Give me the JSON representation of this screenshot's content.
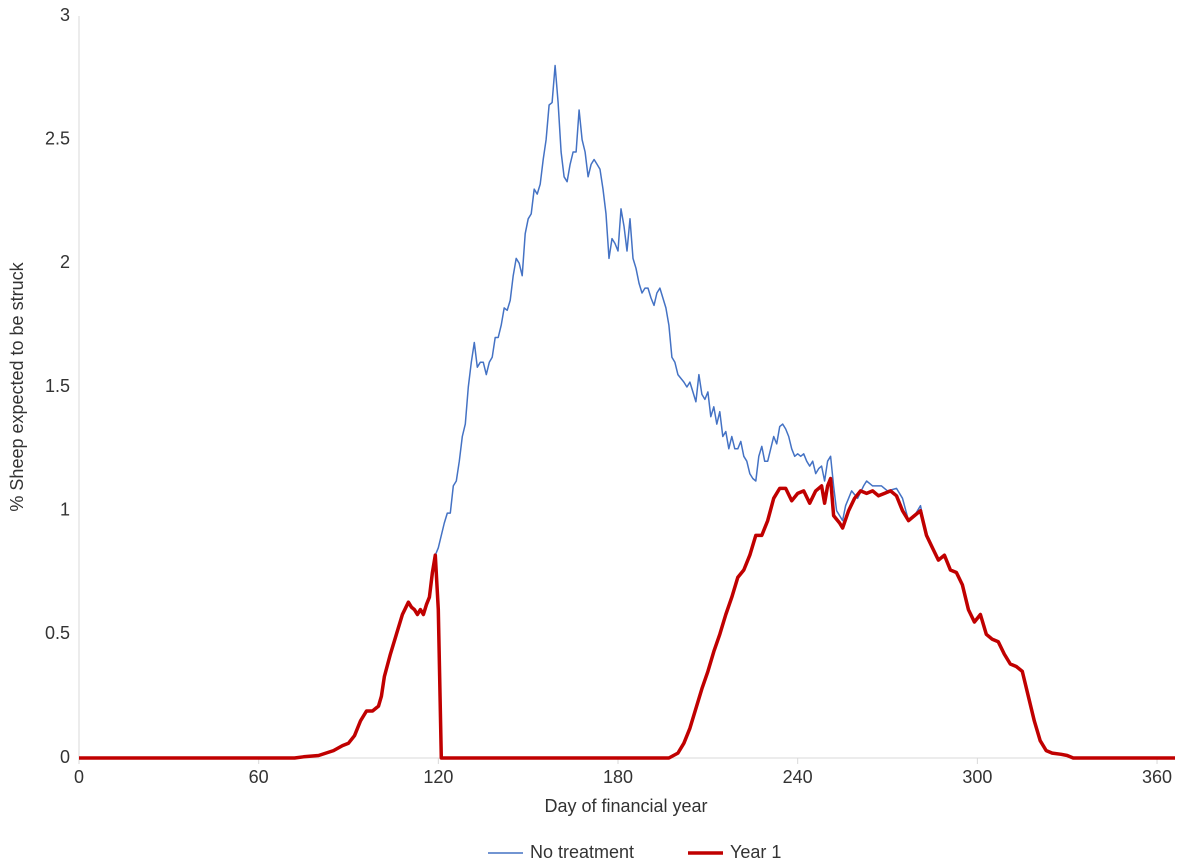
{
  "chart_data": {
    "type": "line",
    "xlabel": "Day of financial year",
    "ylabel": "% Sheep expected to be struck",
    "xlim": [
      0,
      366
    ],
    "xticks": [
      0,
      60,
      120,
      180,
      240,
      300,
      360
    ],
    "ylim": [
      0,
      3
    ],
    "yticks": [
      0,
      0.5,
      1,
      1.5,
      2,
      2.5,
      3
    ],
    "grid": false,
    "legend": "bottom",
    "series": [
      {
        "name": "No treatment",
        "color": "#4472c4",
        "width": 1.5,
        "x": [
          0,
          70,
          72,
          75,
          80,
          85,
          88,
          90,
          92,
          94,
          96,
          98,
          100,
          101,
          102,
          104,
          106,
          108,
          110,
          111,
          112,
          113,
          114,
          115,
          116,
          117,
          118,
          119,
          120,
          122,
          123,
          124,
          125,
          126,
          127,
          128,
          129,
          130,
          131,
          132,
          133,
          134,
          135,
          136,
          137,
          138,
          139,
          140,
          141,
          142,
          143,
          144,
          145,
          146,
          147,
          148,
          149,
          150,
          151,
          152,
          153,
          154,
          155,
          156,
          157,
          158,
          159,
          160,
          161,
          162,
          163,
          164,
          165,
          166,
          167,
          168,
          169,
          170,
          171,
          172,
          173,
          174,
          175,
          176,
          177,
          178,
          179,
          180,
          181,
          182,
          183,
          184,
          185,
          186,
          187,
          188,
          189,
          190,
          191,
          192,
          193,
          194,
          195,
          196,
          197,
          198,
          199,
          200,
          202,
          203,
          204,
          205,
          206,
          207,
          208,
          209,
          210,
          211,
          212,
          213,
          214,
          215,
          216,
          217,
          218,
          219,
          220,
          221,
          222,
          223,
          224,
          225,
          226,
          227,
          228,
          229,
          230,
          231,
          232,
          233,
          234,
          235,
          236,
          237,
          238,
          239,
          240,
          241,
          242,
          243,
          244,
          245,
          246,
          247,
          248,
          249,
          250,
          251,
          252,
          253,
          254,
          255,
          256,
          257,
          258,
          260,
          262,
          263,
          265,
          268,
          270,
          273,
          275,
          277,
          279,
          281,
          283,
          285,
          287,
          289,
          291,
          293,
          295,
          297,
          299,
          301,
          303,
          305,
          307,
          309,
          311,
          313,
          315,
          317,
          319,
          321,
          323,
          325,
          328,
          330,
          332,
          366
        ],
        "values": [
          0,
          0,
          0,
          0.005,
          0.01,
          0.03,
          0.05,
          0.06,
          0.09,
          0.15,
          0.19,
          0.19,
          0.21,
          0.25,
          0.33,
          0.42,
          0.5,
          0.58,
          0.63,
          0.61,
          0.6,
          0.58,
          0.6,
          0.58,
          0.62,
          0.65,
          0.75,
          0.82,
          0.85,
          0.95,
          0.99,
          0.99,
          1.1,
          1.12,
          1.2,
          1.3,
          1.35,
          1.5,
          1.6,
          1.68,
          1.58,
          1.6,
          1.6,
          1.55,
          1.6,
          1.62,
          1.7,
          1.7,
          1.75,
          1.82,
          1.81,
          1.85,
          1.95,
          2.02,
          2.0,
          1.95,
          2.12,
          2.18,
          2.2,
          2.3,
          2.28,
          2.32,
          2.42,
          2.5,
          2.64,
          2.65,
          2.8,
          2.65,
          2.45,
          2.35,
          2.33,
          2.4,
          2.45,
          2.45,
          2.62,
          2.5,
          2.45,
          2.35,
          2.4,
          2.42,
          2.4,
          2.38,
          2.3,
          2.2,
          2.02,
          2.1,
          2.08,
          2.05,
          2.22,
          2.15,
          2.05,
          2.18,
          2.02,
          1.98,
          1.92,
          1.88,
          1.9,
          1.9,
          1.86,
          1.83,
          1.88,
          1.9,
          1.86,
          1.82,
          1.75,
          1.62,
          1.6,
          1.55,
          1.52,
          1.5,
          1.52,
          1.48,
          1.44,
          1.55,
          1.47,
          1.45,
          1.48,
          1.38,
          1.42,
          1.35,
          1.4,
          1.3,
          1.32,
          1.25,
          1.3,
          1.25,
          1.25,
          1.28,
          1.22,
          1.2,
          1.15,
          1.13,
          1.12,
          1.22,
          1.26,
          1.2,
          1.2,
          1.25,
          1.3,
          1.27,
          1.34,
          1.35,
          1.33,
          1.3,
          1.25,
          1.22,
          1.23,
          1.22,
          1.23,
          1.2,
          1.18,
          1.2,
          1.15,
          1.17,
          1.18,
          1.12,
          1.2,
          1.22,
          1.1,
          1.0,
          0.98,
          0.96,
          1.02,
          1.05,
          1.08,
          1.05,
          1.1,
          1.12,
          1.1,
          1.1,
          1.08,
          1.09,
          1.05,
          0.96,
          0.98,
          1.02,
          0.9,
          0.85,
          0.8,
          0.82,
          0.76,
          0.75,
          0.7,
          0.6,
          0.55,
          0.58,
          0.5,
          0.48,
          0.47,
          0.42,
          0.38,
          0.37,
          0.35,
          0.25,
          0.15,
          0.07,
          0.03,
          0.02,
          0.015,
          0.01,
          0,
          0
        ]
      },
      {
        "name": "Year 1",
        "color": "#c00000",
        "width": 3.5,
        "x": [
          0,
          70,
          72,
          75,
          80,
          85,
          88,
          90,
          92,
          94,
          96,
          98,
          100,
          101,
          102,
          104,
          106,
          108,
          110,
          111,
          112,
          113,
          114,
          115,
          116,
          117,
          118,
          119,
          120,
          121,
          197,
          200,
          202,
          204,
          206,
          208,
          210,
          212,
          214,
          216,
          218,
          220,
          222,
          224,
          226,
          228,
          230,
          232,
          234,
          236,
          238,
          240,
          242,
          244,
          246,
          248,
          249,
          250,
          251,
          252,
          254,
          255,
          257,
          259,
          261,
          263,
          265,
          267,
          269,
          271,
          273,
          275,
          277,
          279,
          281,
          283,
          285,
          287,
          289,
          291,
          293,
          295,
          297,
          299,
          301,
          303,
          305,
          307,
          309,
          311,
          313,
          315,
          317,
          319,
          321,
          323,
          325,
          328,
          330,
          332,
          366
        ],
        "values": [
          0,
          0,
          0,
          0.005,
          0.01,
          0.03,
          0.05,
          0.06,
          0.09,
          0.15,
          0.19,
          0.19,
          0.21,
          0.25,
          0.33,
          0.42,
          0.5,
          0.58,
          0.63,
          0.61,
          0.6,
          0.58,
          0.6,
          0.58,
          0.62,
          0.65,
          0.75,
          0.82,
          0.6,
          0,
          0,
          0.02,
          0.06,
          0.12,
          0.2,
          0.28,
          0.35,
          0.43,
          0.5,
          0.58,
          0.65,
          0.73,
          0.76,
          0.82,
          0.9,
          0.9,
          0.96,
          1.05,
          1.09,
          1.09,
          1.04,
          1.07,
          1.08,
          1.03,
          1.08,
          1.1,
          1.03,
          1.1,
          1.13,
          0.98,
          0.95,
          0.93,
          1.0,
          1.05,
          1.08,
          1.07,
          1.08,
          1.06,
          1.07,
          1.08,
          1.06,
          1.0,
          0.96,
          0.98,
          1.0,
          0.9,
          0.85,
          0.8,
          0.82,
          0.76,
          0.75,
          0.7,
          0.6,
          0.55,
          0.58,
          0.5,
          0.48,
          0.47,
          0.42,
          0.38,
          0.37,
          0.35,
          0.25,
          0.15,
          0.07,
          0.03,
          0.02,
          0.015,
          0.01,
          0,
          0
        ]
      }
    ]
  }
}
